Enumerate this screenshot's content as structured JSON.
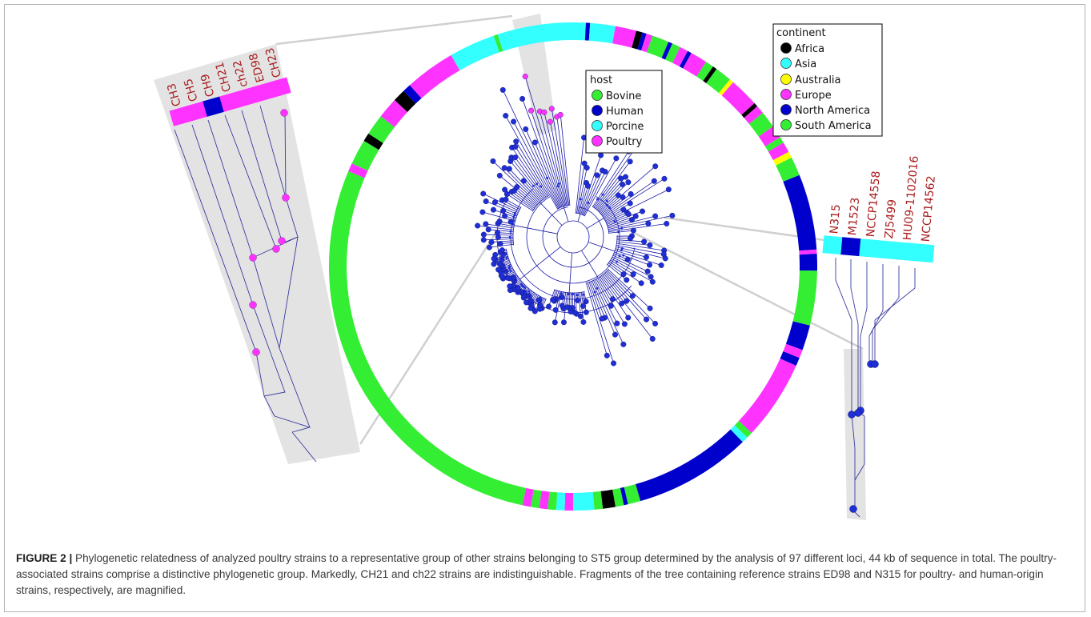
{
  "colors": {
    "africa": "#000000",
    "asia": "#33ffff",
    "australia": "#ffff00",
    "europe": "#ff33ff",
    "north_america": "#0000cc",
    "south_america": "#33ee33",
    "branch": "#1a1aaa",
    "node": "#1f2fd6",
    "poultry_node": "#ff33ff",
    "zoom_bg": "#e3e3e3",
    "strain_label": "#a81e1e"
  },
  "host_legend": {
    "title": "host",
    "items": [
      {
        "label": "Bovine",
        "color": "#33ee33"
      },
      {
        "label": "Human",
        "color": "#0000cc"
      },
      {
        "label": "Porcine",
        "color": "#33ffff"
      },
      {
        "label": "Poultry",
        "color": "#ff33ff"
      }
    ]
  },
  "continent_legend": {
    "title": "continent",
    "items": [
      {
        "label": "Africa",
        "color": "#000000"
      },
      {
        "label": "Asia",
        "color": "#33ffff"
      },
      {
        "label": "Australia",
        "color": "#ffff00"
      },
      {
        "label": "Europe",
        "color": "#ff33ff"
      },
      {
        "label": "North America",
        "color": "#0000cc"
      },
      {
        "label": "South America",
        "color": "#33ee33"
      }
    ]
  },
  "left_zoom": {
    "strains": [
      "CH3",
      "CH5",
      "CH9",
      "CH21",
      "ch22",
      "ED98",
      "CH23"
    ],
    "continents": [
      "europe",
      "europe",
      "north_america",
      "europe",
      "europe",
      "europe",
      "europe"
    ]
  },
  "right_zoom": {
    "strains": [
      "N315",
      "M1523",
      "NCCP14558",
      "ZJ5499",
      "HU09-1102016",
      "NCCP14562"
    ],
    "continents": [
      "asia",
      "north_america",
      "asia",
      "asia",
      "asia",
      "asia"
    ]
  },
  "caption": {
    "label": "FIGURE 2 |",
    "text": " Phylogenetic relatedness of analyzed poultry strains to a representative group of other strains belonging to ST5 group determined by the analysis of 97 different loci, 44 kb of sequence in total. The poultry-associated strains comprise a distinctive phylogenetic group. Markedly, CH21 and ch22 strains are indistinguishable. Fragments of the tree containing reference strains ED98 and N315 for poultry- and human-origin strains, respectively, are magnified."
  },
  "ring_segments": [
    [
      "asia",
      0,
      3
    ],
    [
      "north_america",
      3,
      4
    ],
    [
      "asia",
      4,
      10
    ],
    [
      "europe",
      10,
      15
    ],
    [
      "africa",
      15,
      16.5
    ],
    [
      "north_america",
      16.5,
      17.5
    ],
    [
      "europe",
      17.5,
      19
    ],
    [
      "south_america",
      19,
      23
    ],
    [
      "north_america",
      23,
      24
    ],
    [
      "south_america",
      24,
      26
    ],
    [
      "europe",
      26,
      28
    ],
    [
      "north_america",
      28,
      29
    ],
    [
      "europe",
      29,
      33
    ],
    [
      "south_america",
      33,
      35
    ],
    [
      "africa",
      35,
      36
    ],
    [
      "south_america",
      36,
      40
    ],
    [
      "yellow_placeholder",
      40,
      41
    ],
    [
      "europe",
      41,
      48
    ],
    [
      "africa",
      48,
      49
    ],
    [
      "europe",
      49,
      51
    ],
    [
      "south_america",
      51,
      55
    ],
    [
      "europe",
      55,
      58
    ],
    [
      "south_america",
      58,
      59.5
    ],
    [
      "europe",
      59.5,
      62
    ],
    [
      "australia",
      62,
      63.5
    ],
    [
      "south_america",
      63.5,
      68
    ],
    [
      "north_america",
      68,
      86
    ],
    [
      "europe",
      86,
      87
    ],
    [
      "north_america",
      87,
      91
    ],
    [
      "south_america",
      91,
      104
    ],
    [
      "north_america",
      104,
      110
    ],
    [
      "europe",
      110,
      112
    ],
    [
      "north_america",
      112,
      114
    ],
    [
      "europe",
      114,
      133
    ],
    [
      "south_america",
      133,
      134.5
    ],
    [
      "asia",
      134.5,
      136
    ],
    [
      "north_america",
      136,
      164
    ],
    [
      "south_america",
      164,
      167
    ],
    [
      "north_america",
      167,
      168
    ],
    [
      "south_america",
      168,
      170
    ],
    [
      "africa",
      170,
      173
    ],
    [
      "south_america",
      173,
      175
    ],
    [
      "asia",
      175,
      180
    ],
    [
      "europe",
      180,
      182
    ],
    [
      "asia",
      182,
      184
    ],
    [
      "south_america",
      184,
      186
    ],
    [
      "europe",
      186,
      188
    ],
    [
      "south_america",
      188,
      190
    ],
    [
      "europe",
      190,
      192
    ],
    [
      "south_america",
      192,
      293
    ],
    [
      "europe",
      293,
      295
    ],
    [
      "south_america",
      295,
      301
    ],
    [
      "africa",
      301,
      303
    ],
    [
      "south_america",
      303,
      308
    ],
    [
      "europe",
      308,
      313
    ],
    [
      "africa",
      313,
      316
    ],
    [
      "north_america",
      316,
      318
    ],
    [
      "europe",
      318,
      330
    ],
    [
      "asia",
      330,
      341
    ],
    [
      "south_america",
      341,
      342
    ],
    [
      "asia",
      342,
      360
    ]
  ]
}
